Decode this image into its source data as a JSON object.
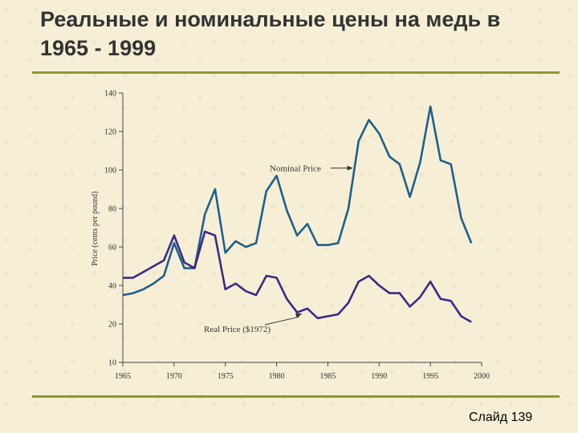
{
  "slide": {
    "title": "Реальные и номинальные цены на медь в 1965 - 1999",
    "number_label": "Слайд 139"
  },
  "chart_data": {
    "type": "line",
    "ylabel": "Price (cents per pound)",
    "xlim": [
      1965,
      2000
    ],
    "ylim": [
      10,
      140
    ],
    "x_ticks": [
      1965,
      1970,
      1975,
      1980,
      1985,
      1990,
      1995,
      2000
    ],
    "y_ticks": [
      10,
      20,
      40,
      60,
      80,
      100,
      120,
      140
    ],
    "x_tick_labels": [
      "1965",
      "1970",
      "1975",
      "1980",
      "1985",
      "1990",
      "1995",
      "2000"
    ],
    "y_tick_labels": [
      "10",
      "20",
      "40",
      "60",
      "80",
      "100",
      "120",
      "140"
    ],
    "series": [
      {
        "name": "Nominal Price",
        "color": "#1f5f8b",
        "x": [
          1965,
          1966,
          1967,
          1968,
          1969,
          1970,
          1971,
          1972,
          1973,
          1974,
          1975,
          1976,
          1977,
          1978,
          1979,
          1980,
          1981,
          1982,
          1983,
          1984,
          1985,
          1986,
          1987,
          1988,
          1989,
          1990,
          1991,
          1992,
          1993,
          1994,
          1995,
          1996,
          1997,
          1998,
          1999
        ],
        "values": [
          35,
          36,
          38,
          41,
          45,
          62,
          49,
          49,
          77,
          90,
          57,
          63,
          60,
          62,
          89,
          97,
          79,
          66,
          72,
          61,
          61,
          62,
          80,
          115,
          126,
          119,
          107,
          103,
          86,
          104,
          133,
          105,
          103,
          75,
          62
        ]
      },
      {
        "name": "Real Price ($1972)",
        "color": "#3a2a8a",
        "x": [
          1965,
          1966,
          1967,
          1968,
          1969,
          1970,
          1971,
          1972,
          1973,
          1974,
          1975,
          1976,
          1977,
          1978,
          1979,
          1980,
          1981,
          1982,
          1983,
          1984,
          1985,
          1986,
          1987,
          1988,
          1989,
          1990,
          1991,
          1992,
          1993,
          1994,
          1995,
          1996,
          1997,
          1998,
          1999
        ],
        "values": [
          44,
          44,
          47,
          50,
          53,
          66,
          52,
          49,
          68,
          66,
          38,
          41,
          37,
          35,
          45,
          44,
          33,
          26,
          28,
          23,
          24,
          25,
          31,
          42,
          45,
          40,
          36,
          36,
          29,
          34,
          42,
          33,
          32,
          24,
          21
        ]
      }
    ],
    "annotations": [
      {
        "text": "Nominal Price",
        "target_series": 0,
        "target_x": 1987.6
      },
      {
        "text": "Real Price ($1972)",
        "target_series": 1,
        "target_x": 1982.5
      }
    ],
    "grid": false
  }
}
